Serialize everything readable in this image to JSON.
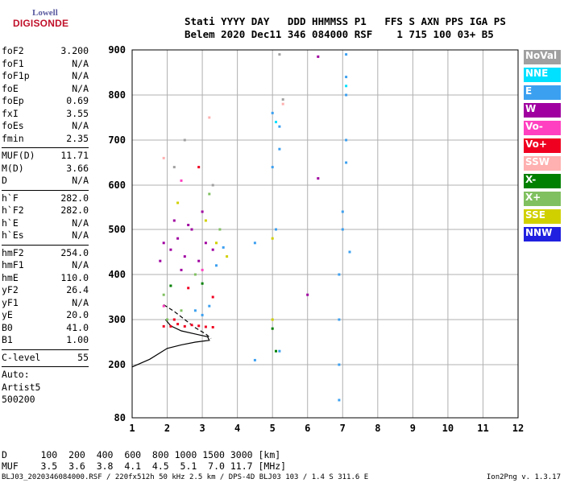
{
  "logo": {
    "line1": "Lowell",
    "line2": "DIGISONDE"
  },
  "header": {
    "line1": "Stati YYYY DAY   DDD HHMMSS P1   FFS S AXN PPS IGA PS",
    "line2": "Belem 2020 Dec11 346 084000 RSF    1 715 100 03+ B5"
  },
  "params": [
    {
      "k": "foF2",
      "v": "3.200"
    },
    {
      "k": "foF1",
      "v": "N/A"
    },
    {
      "k": "foF1p",
      "v": "N/A"
    },
    {
      "k": "foE",
      "v": "N/A"
    },
    {
      "k": "foEp",
      "v": "0.69"
    },
    {
      "k": "fxI",
      "v": "3.55"
    },
    {
      "k": "foEs",
      "v": "N/A"
    },
    {
      "k": "fmin",
      "v": "2.35"
    },
    {
      "sep": true
    },
    {
      "k": "MUF(D)",
      "v": "11.71"
    },
    {
      "k": "M(D)",
      "v": "3.66"
    },
    {
      "k": "D",
      "v": "N/A"
    },
    {
      "sep": true
    },
    {
      "k": "h`F",
      "v": "282.0"
    },
    {
      "k": "h`F2",
      "v": "282.0"
    },
    {
      "k": "h`E",
      "v": "N/A"
    },
    {
      "k": "h`Es",
      "v": "N/A"
    },
    {
      "sep": true
    },
    {
      "k": "hmF2",
      "v": "254.0"
    },
    {
      "k": "hmF1",
      "v": "N/A"
    },
    {
      "k": "hmE",
      "v": "110.0"
    },
    {
      "k": "yF2",
      "v": "26.4"
    },
    {
      "k": "yF1",
      "v": "N/A"
    },
    {
      "k": "yE",
      "v": "20.0"
    },
    {
      "k": "B0",
      "v": "41.0"
    },
    {
      "k": "B1",
      "v": "1.00"
    },
    {
      "sep": true
    },
    {
      "k": "C-level",
      "v": "55"
    },
    {
      "sep": true
    },
    {
      "k": "Auto:",
      "v": ""
    },
    {
      "k": "Artist5",
      "v": ""
    },
    {
      "k": "500200",
      "v": ""
    }
  ],
  "legend": [
    {
      "label": "NoVal",
      "color": "#a0a0a0"
    },
    {
      "label": "NNE",
      "color": "#00e0ff"
    },
    {
      "label": "E",
      "color": "#3ca0f0"
    },
    {
      "label": "W",
      "color": "#a000a0"
    },
    {
      "label": "Vo-",
      "color": "#ff40c0"
    },
    {
      "label": "Vo+",
      "color": "#f00020"
    },
    {
      "label": "SSW",
      "color": "#ffb0b0"
    },
    {
      "label": "X-",
      "color": "#008000"
    },
    {
      "label": "X+",
      "color": "#80c060"
    },
    {
      "label": "SSE",
      "color": "#d0d000"
    },
    {
      "label": "NNW",
      "color": "#2020e0"
    }
  ],
  "footer": {
    "line1": "D      100  200  400  600  800 1000 1500 3000 [km]",
    "line2": "MUF    3.5  3.6  3.8  4.1  4.5  5.1  7.0 11.7 [MHz]"
  },
  "file_line": "BLJ03_2020346084000.RSF / 220fx512h 50 kHz 2.5 km / DPS-4D BLJ03 103 / 1.4 S 311.6 E",
  "version": "Ion2Png v. 1.3.17",
  "chart_data": {
    "type": "scatter",
    "x_ticks": [
      1,
      2,
      3,
      4,
      5,
      6,
      7,
      8,
      9,
      10,
      11,
      12
    ],
    "y_ticks": [
      80,
      200,
      300,
      400,
      500,
      600,
      700,
      800,
      900
    ],
    "xlim": [
      1,
      12
    ],
    "ylim": [
      80,
      900
    ],
    "grid": true,
    "legend_position": "right",
    "series": [
      {
        "name": "W",
        "color": "#a000a0",
        "points": [
          [
            1.9,
            470
          ],
          [
            2.1,
            455
          ],
          [
            2.3,
            480
          ],
          [
            2.5,
            440
          ],
          [
            2.7,
            500
          ],
          [
            2.9,
            430
          ],
          [
            3.1,
            470
          ],
          [
            3.3,
            455
          ],
          [
            2.2,
            520
          ],
          [
            2.6,
            510
          ],
          [
            3.0,
            540
          ],
          [
            2.4,
            410
          ],
          [
            6.3,
            885
          ],
          [
            6.3,
            615
          ],
          [
            6.0,
            355
          ],
          [
            1.8,
            430
          ]
        ]
      },
      {
        "name": "E",
        "color": "#3ca0f0",
        "points": [
          [
            2.8,
            320
          ],
          [
            3.0,
            310
          ],
          [
            3.2,
            330
          ],
          [
            3.4,
            420
          ],
          [
            3.6,
            460
          ],
          [
            5.0,
            760
          ],
          [
            5.2,
            730
          ],
          [
            5.2,
            680
          ],
          [
            5.0,
            640
          ],
          [
            5.1,
            500
          ],
          [
            4.5,
            470
          ],
          [
            5.2,
            230
          ],
          [
            4.5,
            210
          ],
          [
            7.1,
            890
          ],
          [
            7.1,
            840
          ],
          [
            7.1,
            800
          ],
          [
            7.1,
            700
          ],
          [
            7.1,
            650
          ],
          [
            7.0,
            540
          ],
          [
            7.0,
            500
          ],
          [
            7.2,
            450
          ],
          [
            6.9,
            400
          ],
          [
            6.9,
            300
          ],
          [
            6.9,
            200
          ],
          [
            6.9,
            120
          ]
        ]
      },
      {
        "name": "Vo+",
        "color": "#f00020",
        "points": [
          [
            1.9,
            285
          ],
          [
            2.1,
            285
          ],
          [
            2.3,
            290
          ],
          [
            2.5,
            285
          ],
          [
            2.7,
            288
          ],
          [
            2.9,
            286
          ],
          [
            3.1,
            284
          ],
          [
            3.3,
            283
          ],
          [
            2.2,
            300
          ],
          [
            2.6,
            370
          ],
          [
            3.3,
            350
          ],
          [
            2.9,
            640
          ]
        ]
      },
      {
        "name": "X+",
        "color": "#80c060",
        "points": [
          [
            2.0,
            300
          ],
          [
            2.4,
            320
          ],
          [
            2.8,
            400
          ],
          [
            3.2,
            580
          ],
          [
            1.9,
            355
          ],
          [
            3.5,
            500
          ]
        ]
      },
      {
        "name": "SSE",
        "color": "#d0d000",
        "points": [
          [
            2.3,
            560
          ],
          [
            3.1,
            520
          ],
          [
            3.4,
            470
          ],
          [
            5.0,
            480
          ],
          [
            5.0,
            300
          ],
          [
            3.7,
            440
          ]
        ]
      },
      {
        "name": "X-",
        "color": "#008000",
        "points": [
          [
            2.1,
            375
          ],
          [
            3.0,
            380
          ],
          [
            5.0,
            280
          ],
          [
            5.1,
            230
          ]
        ]
      },
      {
        "name": "Vo-",
        "color": "#ff40c0",
        "points": [
          [
            2.4,
            610
          ],
          [
            3.0,
            410
          ],
          [
            1.9,
            330
          ]
        ]
      },
      {
        "name": "NNE",
        "color": "#00e0ff",
        "points": [
          [
            5.1,
            740
          ],
          [
            7.1,
            820
          ]
        ]
      },
      {
        "name": "NoVal",
        "color": "#a0a0a0",
        "points": [
          [
            2.5,
            700
          ],
          [
            2.2,
            640
          ],
          [
            3.3,
            600
          ],
          [
            5.2,
            890
          ],
          [
            5.3,
            790
          ]
        ]
      },
      {
        "name": "SSW",
        "color": "#ffb0b0",
        "points": [
          [
            5.3,
            780
          ],
          [
            1.9,
            660
          ],
          [
            3.2,
            750
          ]
        ]
      }
    ],
    "solid_trace": [
      [
        1.0,
        195
      ],
      [
        1.5,
        212
      ],
      [
        2.0,
        236
      ],
      [
        2.4,
        244
      ],
      [
        2.8,
        250
      ],
      [
        3.2,
        254
      ],
      [
        3.15,
        262
      ],
      [
        2.8,
        268
      ],
      [
        2.4,
        275
      ],
      [
        2.1,
        286
      ],
      [
        1.95,
        300
      ]
    ],
    "dashed_trace": [
      [
        1.9,
        333
      ],
      [
        2.2,
        318
      ],
      [
        2.5,
        300
      ],
      [
        2.8,
        282
      ],
      [
        3.1,
        268
      ],
      [
        3.25,
        258
      ]
    ]
  }
}
